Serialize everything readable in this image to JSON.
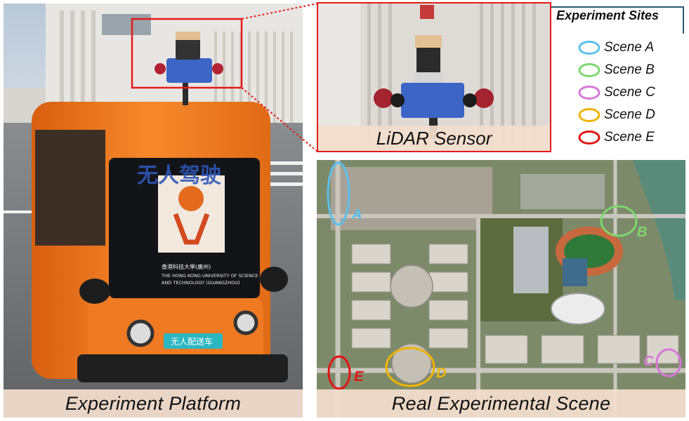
{
  "captions": {
    "platform": "Experiment Platform",
    "lidar": "LiDAR Sensor",
    "scene": "Real Experimental Scene"
  },
  "vehicle": {
    "screen_text": "无人驾驶",
    "university_cn": "香港科技大學(廣州)",
    "university_en_1": "THE HONG KONG UNIVERSITY OF SCIENCE",
    "university_en_2": "AND TECHNOLOGY (GUANGZHOU)",
    "plate": "无人配送车"
  },
  "legend": {
    "title": "Experiment Sites",
    "items": [
      {
        "label": "Scene A",
        "color": "#5bc0eb"
      },
      {
        "label": "Scene B",
        "color": "#7ed66e"
      },
      {
        "label": "Scene C",
        "color": "#d678d8"
      },
      {
        "label": "Scene D",
        "color": "#f0b400"
      },
      {
        "label": "Scene E",
        "color": "#e01515"
      }
    ]
  },
  "map_markers": [
    {
      "letter": "A",
      "color": "#5bc0eb"
    },
    {
      "letter": "B",
      "color": "#7ed66e"
    },
    {
      "letter": "C",
      "color": "#d678d8"
    },
    {
      "letter": "D",
      "color": "#f0b400"
    },
    {
      "letter": "E",
      "color": "#e01515"
    }
  ],
  "colors": {
    "highlight_box": "#e31b1b",
    "vehicle_orange": "#f47a1f",
    "legend_accent": "#2d5a70"
  }
}
